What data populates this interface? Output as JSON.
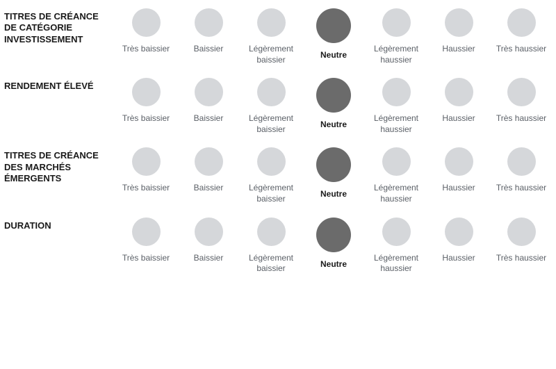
{
  "colors": {
    "inactive_dot": "#d5d7da",
    "active_dot": "#6b6b6b",
    "row_label": "#1a1a1a",
    "scale_label": "#5a5f66",
    "background": "#ffffff"
  },
  "dot_sizes": {
    "inactive": 41,
    "active": 50
  },
  "scale": [
    "Très baissier",
    "Baissier",
    "Légèrement baissier",
    "Neutre",
    "Légèrement haussier",
    "Haussier",
    "Très haussier"
  ],
  "rows": [
    {
      "label": "TITRES DE CRÉANCE DE CATÉGORIE INVESTISSEMENT",
      "selected": 3
    },
    {
      "label": "RENDEMENT ÉLEVÉ",
      "selected": 3
    },
    {
      "label": "TITRES DE CRÉANCE DES MARCHÉS ÉMERGENTS",
      "selected": 3
    },
    {
      "label": "DURATION",
      "selected": 3
    }
  ]
}
